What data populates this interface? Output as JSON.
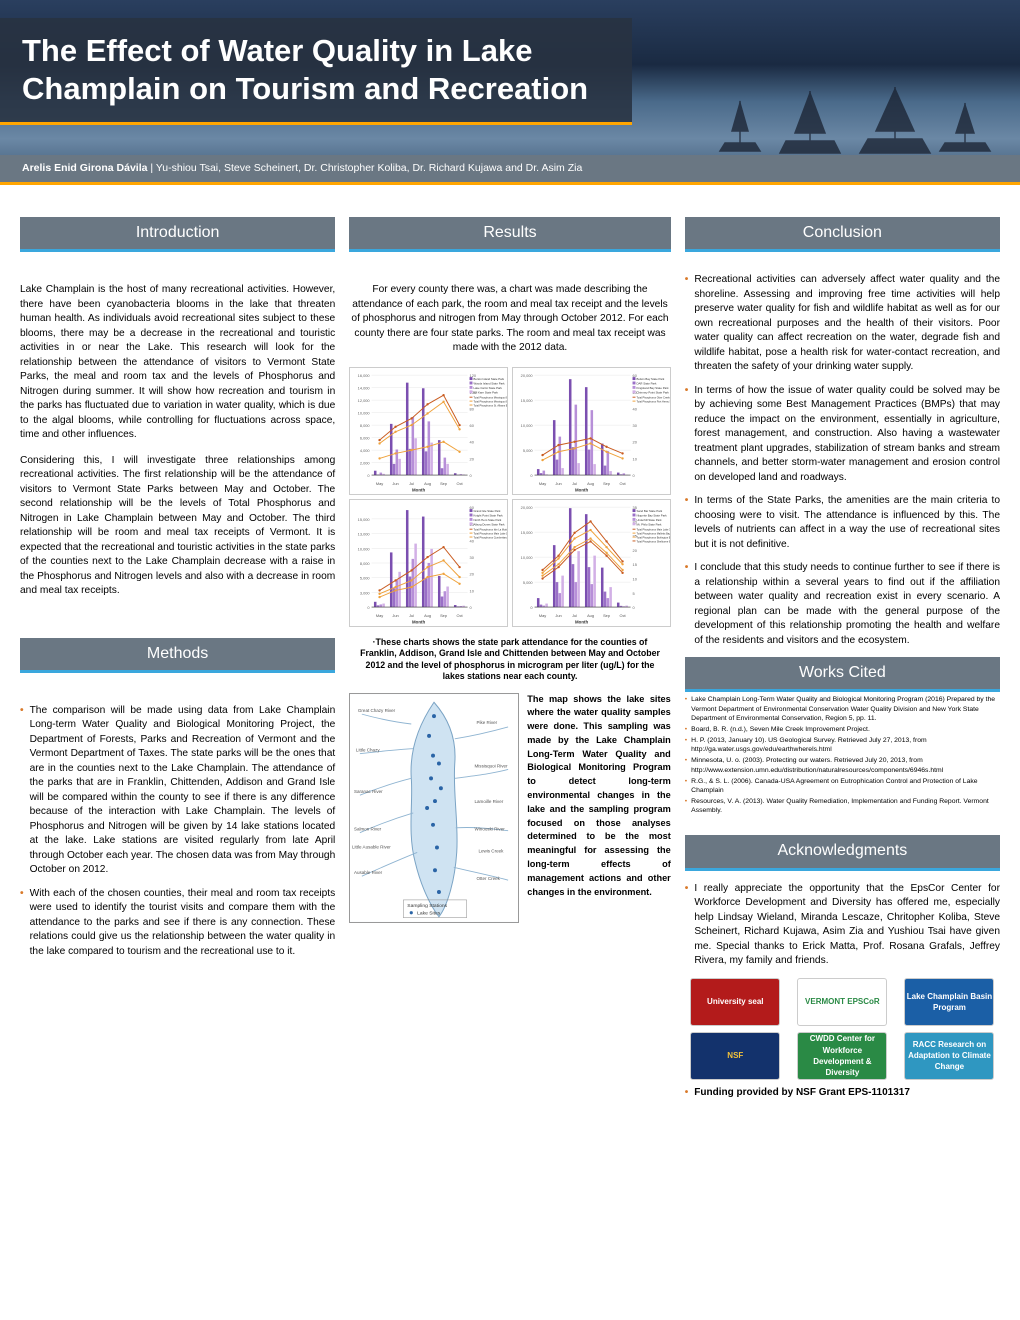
{
  "header": {
    "title": "The Effect of Water Quality in Lake Champlain on Tourism and Recreation",
    "lead_author": "Arelis Enid Girona Dávila",
    "coauthors": "Yu-shiou Tsai, Steve Scheinert, Dr. Christopher Koliba, Dr. Richard Kujawa and Dr. Asim Zia",
    "bg_gradient": [
      "#2a3f5f",
      "#1a2a42",
      "#4a6a8a",
      "#6b88a5",
      "#3a5572"
    ],
    "accent_color": "#ffa500"
  },
  "style": {
    "section_bg": "#6a7783",
    "section_text": "#ffffff",
    "section_rule": "#3aa7dd",
    "bullet_color": "#d97a2b",
    "body_fontsize": 10.2,
    "caption_fontsize": 8.8
  },
  "sections": {
    "intro": "Introduction",
    "methods": "Methods",
    "results": "Results",
    "conclusion": "Conclusion",
    "works": "Works Cited",
    "ack": "Acknowledgments"
  },
  "intro": {
    "p1": "Lake Champlain is the host of many recreational activities. However, there have been cyanobacteria blooms in the lake that threaten human health. As individuals avoid recreational sites subject to these blooms, there may be a decrease in the recreational and touristic activities in or near the Lake. This research will look for the relationship between the attendance of visitors to Vermont State Parks, the meal and room tax and the levels of Phosphorus and Nitrogen during summer. It will show how recreation and tourism in the parks has fluctuated due to variation in water quality, which is due to the algal blooms, while controlling for fluctuations across space, time and other influences.",
    "p2": "Considering this, I will investigate three relationships among recreational activities. The first relationship will be the attendance of visitors to Vermont State Parks between May and October. The second relationship will be the levels of Total Phosphorus and Nitrogen in Lake Champlain between May and October. The third relationship will be room and meal tax receipts of Vermont. It is expected that the recreational and touristic activities in the state parks of the counties next to the Lake Champlain decrease with a raise in the Phosphorus and Nitrogen levels and also with a decrease in room and meal tax receipts."
  },
  "methods": {
    "b1": "The comparison will be made using data from Lake Champlain Long-term Water Quality and Biological Monitoring Project, the Department of Forests, Parks and Recreation of Vermont and the Vermont Department of Taxes. The state parks will be the ones that are in the counties next to the Lake Champlain. The attendance of the parks that are in Franklin, Chittenden, Addison and Grand Isle will be compared within the county to see if there is any difference because of the interaction with Lake Champlain. The levels of Phosphorus and Nitrogen will be given by 14 lake stations located at the lake. Lake stations are visited regularly from late April through October each year. The chosen data was from May through October on 2012.",
    "b2": "With each of the chosen counties, their meal and room tax receipts were used to identify the tourist visits and compare them with the attendance to the parks and see if there is any connection. These relations could give us the relationship between the water quality in the lake compared to tourism and the recreational use to it."
  },
  "results": {
    "intro": "For every county there was, a chart was made describing the attendance of each park, the room and meal tax receipt and the levels of phosphorus and nitrogen from May through October 2012. For each county there are four state parks. The room and meal tax receipt was made with the 2012 data.",
    "caption": "·These charts shows the state park attendance for the counties of Franklin, Addison, Grand Isle and Chittenden between May and October 2012 and the level of phosphorus in microgram per liter (ug/L) for the lakes stations near each county.",
    "map_desc": "The map shows the lake sites where the water quality samples were done. This sampling was made by the Lake Champlain Long-Term Water Quality and Biological Monitoring Program to detect long-term environmental changes in the lake and the sampling program focused on those analyses determined to be the most meaningful for assessing the long-term effects of management actions and other changes in the environment.",
    "charts": {
      "type": "grouped-bar-with-line",
      "x_months": [
        "May",
        "Jun",
        "Jul",
        "Aug",
        "Sep",
        "Oct"
      ],
      "xlabel": "Month",
      "ylabel_left": "Attendance",
      "ylabel_right": "µg/L",
      "bar_colors": [
        "#7b4fb0",
        "#9a6fc7",
        "#b78fd8",
        "#d2b0e6"
      ],
      "line_colors": [
        "#c95b1f",
        "#efa23c",
        "#efa23c"
      ],
      "grid_color": "#e6e6e6",
      "background_color": "#ffffff",
      "panels": [
        {
          "county": "Franklin",
          "ylim_left": [
            0,
            16000
          ],
          "ytick_left": 2000,
          "ylim_right": [
            0,
            120
          ],
          "ytick_right": 20,
          "series_labels": [
            "Burton Island State Park",
            "Woods Island State Park",
            "Lake Carmi State Park",
            "Kill Kare State Park"
          ],
          "bars": [
            [
              700,
              8200,
              14800,
              13900,
              5600,
              300
            ],
            [
              80,
              1800,
              4200,
              3800,
              1100,
              50
            ],
            [
              400,
              4100,
              9300,
              8600,
              2800,
              150
            ],
            [
              200,
              2600,
              5900,
              5200,
              1800,
              100
            ]
          ],
          "line_labels": [
            "Total Phosphorus Missisquoi Bay 50",
            "Total Phosphorus Missisquoi Bay Central 51",
            "Total Phosphorus St. Albans Bay 40"
          ],
          "lines": [
            [
              42,
              58,
              68,
              85,
              96,
              60
            ],
            [
              38,
              52,
              60,
              74,
              88,
              55
            ],
            [
              20,
              26,
              30,
              34,
              40,
              28
            ]
          ]
        },
        {
          "county": "Addison",
          "ylim_left": [
            0,
            20000
          ],
          "ytick_left": 5000,
          "ylim_right": [
            0,
            60
          ],
          "ytick_right": 10,
          "series_labels": [
            "Button Bay State Park",
            "DAR State Park",
            "Kingsland Bay State Park",
            "Chimney Point State Park"
          ],
          "bars": [
            [
              1200,
              11000,
              19200,
              17600,
              6300,
              500
            ],
            [
              400,
              3100,
              5600,
              5100,
              1900,
              150
            ],
            [
              900,
              7700,
              14100,
              13000,
              4800,
              350
            ],
            [
              150,
              1400,
              2400,
              2200,
              800,
              60
            ]
          ],
          "line_labels": [
            "Total Phosphorus Otter Creek Segment 17",
            "Total Phosphorus Port Henry Segment 33"
          ],
          "lines": [
            [
              12,
              18,
              20,
              22,
              17,
              13
            ],
            [
              9,
              14,
              16,
              19,
              14,
              10
            ]
          ]
        },
        {
          "county": "Grand Isle",
          "ylim_left": [
            0,
            17000
          ],
          "ytick_left": 2500,
          "ylim_right": [
            0,
            60
          ],
          "ytick_right": 10,
          "series_labels": [
            "Grand Isle State Park",
            "Knight Point State Park",
            "North Hero State Park",
            "Alburg Dunes State Park"
          ],
          "bars": [
            [
              900,
              9300,
              16500,
              15400,
              5300,
              350
            ],
            [
              300,
              3200,
              5200,
              4900,
              1800,
              120
            ],
            [
              450,
              4600,
              8200,
              7500,
              2700,
              180
            ],
            [
              600,
              6000,
              10800,
              9900,
              3500,
              240
            ]
          ],
          "line_labels": [
            "Total Phosphorus Isle La Motte 46",
            "Total Phosphorus Main Lake 19",
            "Total Phosphorus Cumberland 07"
          ],
          "lines": [
            [
              10,
              16,
              22,
              30,
              36,
              24
            ],
            [
              8,
              12,
              16,
              24,
              28,
              18
            ],
            [
              6,
              10,
              12,
              18,
              20,
              14
            ]
          ]
        },
        {
          "county": "Chittenden",
          "ylim_left": [
            0,
            20000
          ],
          "ytick_left": 5000,
          "ylim_right": [
            0,
            35
          ],
          "ytick_right": 5,
          "series_labels": [
            "Sand Bar State Park",
            "Niquette Bay State Park",
            "Underhill State Park",
            "Mt. Philo State Park"
          ],
          "bars": [
            [
              1800,
              12400,
              19800,
              18600,
              7900,
              900
            ],
            [
              500,
              5000,
              8600,
              8000,
              3100,
              250
            ],
            [
              300,
              2800,
              5000,
              4600,
              1800,
              150
            ],
            [
              700,
              6300,
              11200,
              10300,
              4000,
              300
            ]
          ],
          "line_labels": [
            "Total Phosphorus Main Lake 33",
            "Total Phosphorus Malletts Bay 25",
            "Total Phosphorus Burlington Bay 21",
            "Total Phosphorus Shelburne Bay 16"
          ],
          "lines": [
            [
              10,
              14,
              20,
              23,
              18,
              12
            ],
            [
              12,
              17,
              24,
              27,
              21,
              15
            ],
            [
              11,
              15,
              21,
              24,
              19,
              13
            ],
            [
              13,
              18,
              26,
              30,
              23,
              16
            ]
          ]
        }
      ]
    },
    "map": {
      "water_color": "#cfe3f2",
      "land_color": "#ffffff",
      "border_color": "#7aa3c4",
      "river_color": "#8fb4d1",
      "station_color": "#2a64a6",
      "labels": [
        "Great Chazy River",
        "Pike River",
        "Little Chazy",
        "Saranac River",
        "Salmon River",
        "Little Ausable River",
        "Ausable River",
        "Otter Creek",
        "Lewis Creek",
        "Winooski River",
        "Lamoille River",
        "Rock River",
        "Missisquoi River",
        "Lake Sites",
        "Sampling Stations"
      ]
    }
  },
  "conclusion": {
    "b1": "Recreational activities can adversely affect water quality and the shoreline. Assessing and improving free time activities will help preserve water quality for fish and wildlife habitat as well as for our own recreational purposes and the health of their visitors. Poor water quality can affect recreation on the water, degrade fish and wildlife habitat, pose a health risk for water-contact recreation, and threaten the safety of your drinking water supply.",
    "b2": "In terms of how the issue of water quality could be solved may be by achieving some Best Management Practices (BMPs) that may reduce the impact on the environment, essentially in agriculture, forest management, and construction. Also having a wastewater treatment plant upgrades, stabilization of stream banks and stream channels, and better storm-water management and erosion control on developed land and roadways.",
    "b3": "In terms of the State Parks, the amenities are the main criteria to choosing were to visit. The attendance is influenced by this. The levels of nutrients can affect in a way the use of recreational sites but it is not definitive.",
    "b4": "I conclude that this study needs to continue further to see if there is a relationship within a several years to find out if the affiliation between water quality and recreation exist in every scenario. A regional plan can be made with the general purpose of the development of this relationship promoting the health and welfare of the residents and visitors and the ecosystem."
  },
  "works": [
    "Lake Champlain Long-Term Water Quality and Biological Monitoring Program (2016) Prepared by the Vermont Department of Environmental Conservation Water Quality Division and New York State Department of Environmental Conservation, Region 5, pp. 11.",
    "Board, B. R. (n.d.), Seven Mile Creek Improvement Project.",
    "H. P. (2013, January 10). US Geological Survey. Retrieved July 27, 2013, from http://ga.water.usgs.gov/edu/earthwherels.html",
    "Minnesota, U. o. (2003). Protecting our waters. Retrieved July 20, 2013, from http://www.extension.umn.edu/distribution/naturalresources/components/6946s.html",
    "R.G., & S. L. (2006). Canada-USA Agreement on Eutrophication Control and Protection of Lake Champlain",
    "Resources, V. A. (2013). Water Quality Remediation, Implementation and Funding Report. Vermont Assembly."
  ],
  "ack": {
    "text": "I really appreciate the opportunity that the EpsCor Center for Workforce Development and Diversity has offered me, especially help Lindsay Wieland, Miranda Lescaze, Chritopher Koliba, Steve Scheinert, Richard Kujawa, Asim Zia and Yushiou Tsai have given me. Special thanks to Erick Matta, Prof. Rosana Grafals, Jeffrey Rivera, my family and friends.",
    "logos": [
      {
        "name": "University seal",
        "bg": "#b31b1b",
        "fg": "#ffffff"
      },
      {
        "name": "VERMONT EPSCoR",
        "bg": "#ffffff",
        "fg": "#2a8a45"
      },
      {
        "name": "Lake Champlain Basin Program",
        "bg": "#1b5fa6",
        "fg": "#ffffff"
      },
      {
        "name": "NSF",
        "bg": "#13326c",
        "fg": "#f2c23a"
      },
      {
        "name": "CWDD Center for Workforce Development & Diversity",
        "bg": "#2a8a45",
        "fg": "#ffffff"
      },
      {
        "name": "RACC Research on Adaptation to Climate Change",
        "bg": "#2f97c1",
        "fg": "#ffffff"
      }
    ],
    "funding": "Funding provided by NSF Grant EPS-1101317"
  }
}
